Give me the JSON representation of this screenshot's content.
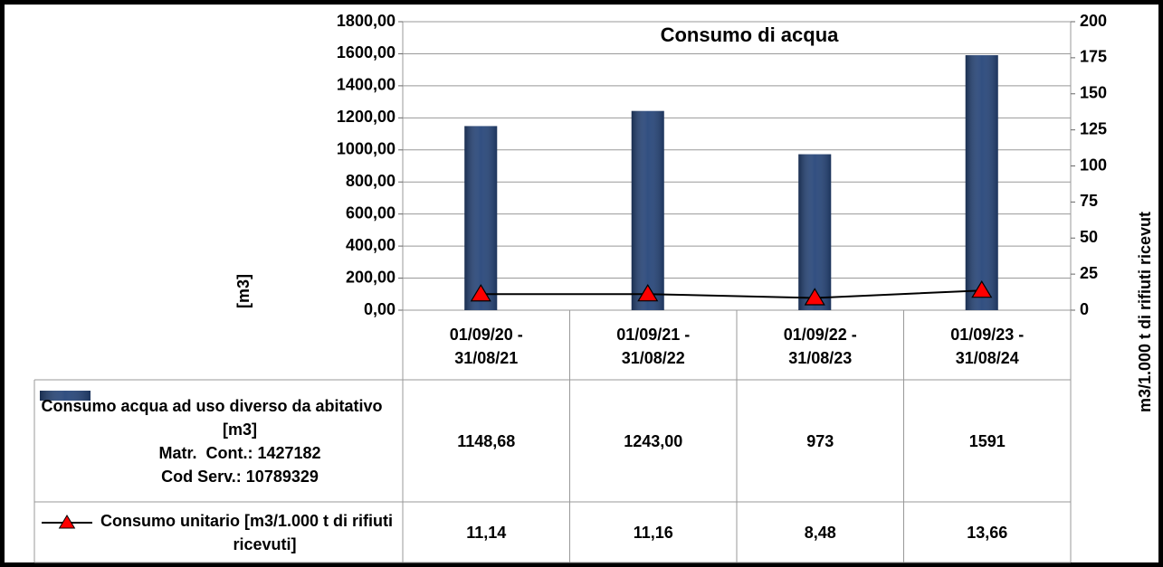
{
  "chart_data": {
    "type": "bar_line",
    "title": "Consumo di acqua",
    "y_label": "[m3]",
    "y2_label": "m3/1.000 t di rifiuti ricevut",
    "categories": [
      "01/09/20 - 31/08/21",
      "01/09/21 - 31/08/22",
      "01/09/22 - 31/08/23",
      "01/09/23 - 31/08/24"
    ],
    "series": [
      {
        "name": "Consumo acqua ad uso diverso da abitativo [m3]",
        "details": [
          "Matr.  Cont.: 1427182",
          "Cod Serv.: 10789329"
        ],
        "type": "bar",
        "color": "#27467a",
        "values": [
          1148.68,
          1243.0,
          973,
          1591
        ],
        "value_labels": [
          "1148,68",
          "1243,00",
          "973",
          "1591"
        ]
      },
      {
        "name": "Consumo unitario [m3/1.000 t di rifiuti ricevuti]",
        "type": "line",
        "axis": "y2",
        "color": "#000000",
        "marker_color": "#ff0000",
        "values": [
          11.14,
          11.16,
          8.48,
          13.66
        ],
        "value_labels": [
          "11,14",
          "11,16",
          "8,48",
          "13,66"
        ]
      }
    ],
    "ylim": [
      0,
      1800
    ],
    "yticks": [
      {
        "value": 0,
        "label": "0,00"
      },
      {
        "value": 200,
        "label": "200,00"
      },
      {
        "value": 400,
        "label": "400,00"
      },
      {
        "value": 600,
        "label": "600,00"
      },
      {
        "value": 800,
        "label": "800,00"
      },
      {
        "value": 1000,
        "label": "1000,00"
      },
      {
        "value": 1200,
        "label": "1200,00"
      },
      {
        "value": 1400,
        "label": "1400,00"
      },
      {
        "value": 1600,
        "label": "1600,00"
      },
      {
        "value": 1800,
        "label": "1800,00"
      }
    ],
    "y2lim": [
      0,
      200
    ],
    "y2ticks": [
      0,
      25,
      50,
      75,
      100,
      125,
      150,
      175,
      200
    ],
    "grid": true
  }
}
